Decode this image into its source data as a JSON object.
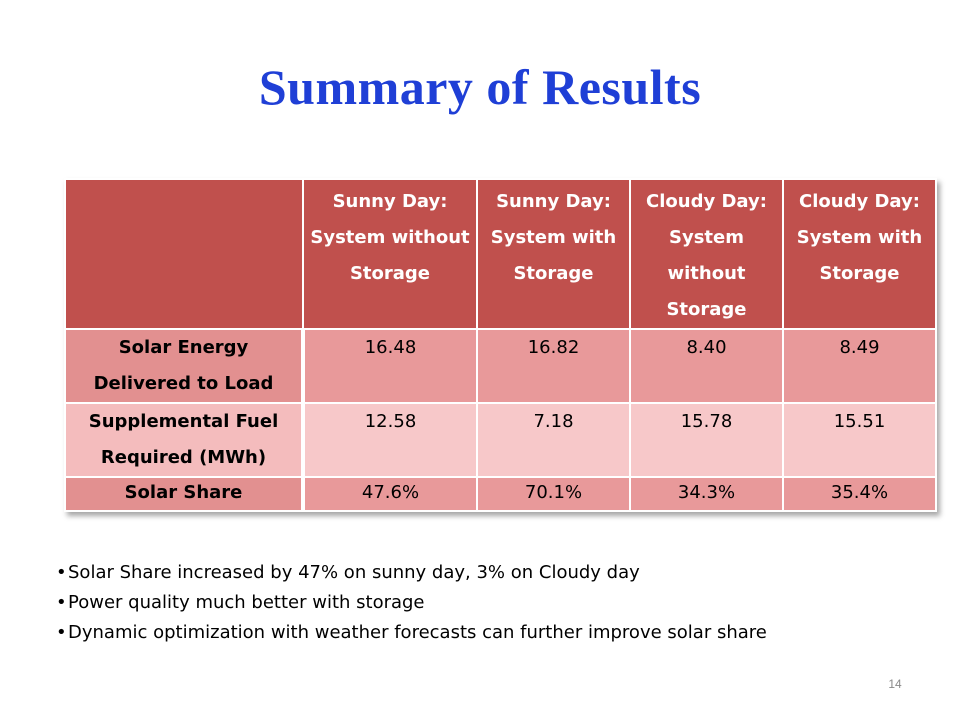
{
  "title": "Summary of Results",
  "table": {
    "headers": [
      "",
      "Sunny Day: System without Storage",
      "Sunny Day: System with Storage",
      "Cloudy Day: System without Storage",
      "Cloudy Day: System with Storage"
    ],
    "rows": [
      {
        "label": "Solar Energy Delivered to Load",
        "values": [
          "16.48",
          "16.82",
          "8.40",
          "8.49"
        ]
      },
      {
        "label": "Supplemental Fuel Required (MWh)",
        "values": [
          "12.58",
          "7.18",
          "15.78",
          "15.51"
        ]
      },
      {
        "label": "Solar Share",
        "values": [
          "47.6%",
          "70.1%",
          "34.3%",
          "35.4%"
        ]
      }
    ]
  },
  "bullets": [
    "Solar Share increased by 47% on sunny day,  3% on Cloudy day",
    "Power quality much better with storage",
    "Dynamic optimization with weather forecasts can further improve solar share"
  ],
  "page_number": "14",
  "colors": {
    "title": "#1f3fd6",
    "header_bg": "#c0504d",
    "row_dark": "#e8999a",
    "row_light": "#f7c8c9"
  }
}
